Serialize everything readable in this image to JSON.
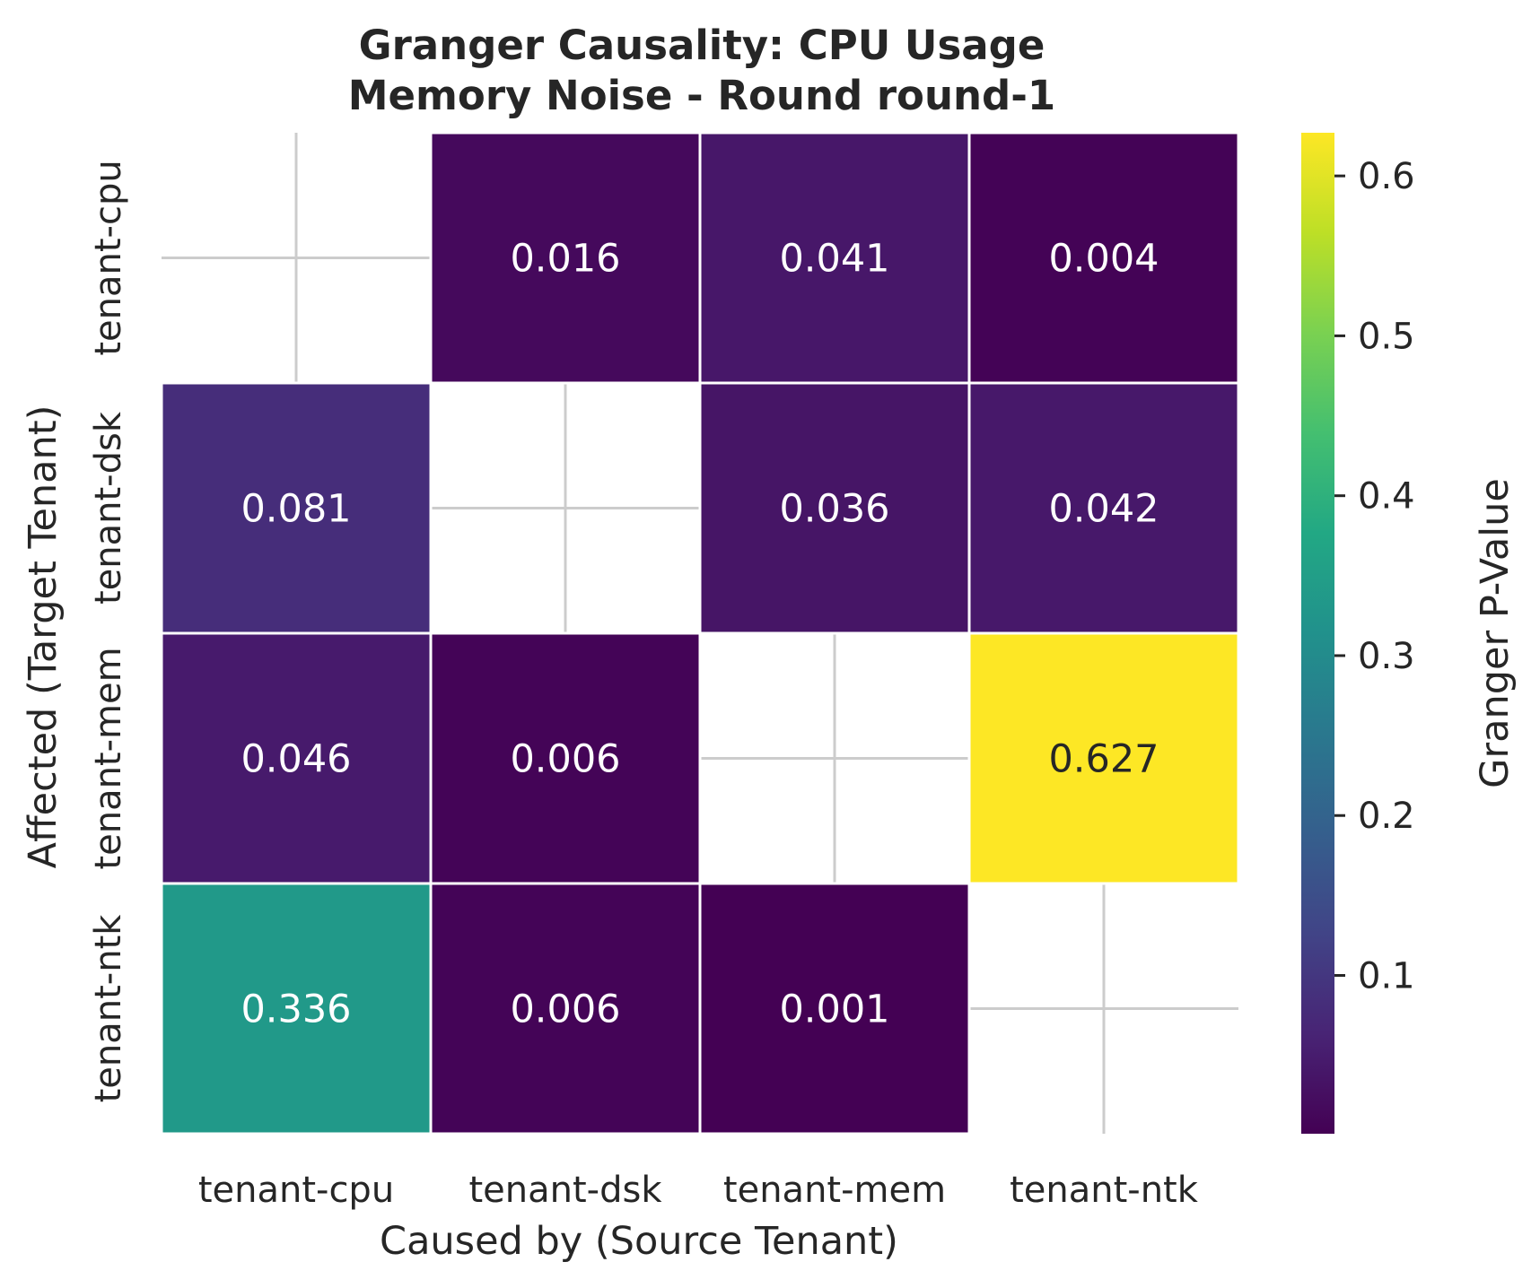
{
  "chart_data": {
    "type": "heatmap",
    "title_lines": [
      "Granger Causality: CPU Usage",
      "Memory Noise - Round round-1"
    ],
    "xlabel": "Caused by (Source Tenant)",
    "ylabel": "Affected (Target Tenant)",
    "x_categories": [
      "tenant-cpu",
      "tenant-dsk",
      "tenant-mem",
      "tenant-ntk"
    ],
    "y_categories": [
      "tenant-cpu",
      "tenant-dsk",
      "tenant-mem",
      "tenant-ntk"
    ],
    "values": [
      [
        null,
        0.016,
        0.041,
        0.004
      ],
      [
        0.081,
        null,
        0.036,
        0.042
      ],
      [
        0.046,
        0.006,
        null,
        0.627
      ],
      [
        0.336,
        0.006,
        0.001,
        null
      ]
    ],
    "value_labels": [
      [
        null,
        "0.016",
        "0.041",
        "0.004"
      ],
      [
        "0.081",
        null,
        "0.036",
        "0.042"
      ],
      [
        "0.046",
        "0.006",
        null,
        "0.627"
      ],
      [
        "0.336",
        "0.006",
        "0.001",
        null
      ]
    ],
    "colormap": "viridis",
    "colorbar": {
      "label": "Granger P-Value",
      "vmin": 0.001,
      "vmax": 0.627,
      "ticks": [
        0.1,
        0.2,
        0.3,
        0.4,
        0.5,
        0.6
      ],
      "tick_labels": [
        "0.1",
        "0.2",
        "0.3",
        "0.4",
        "0.5",
        "0.6"
      ]
    },
    "grid": true,
    "colors": {
      "text_dark": "#262626",
      "text_light": "#ffffff",
      "grid": "#cccccc",
      "cell_border": "#ffffff"
    }
  }
}
